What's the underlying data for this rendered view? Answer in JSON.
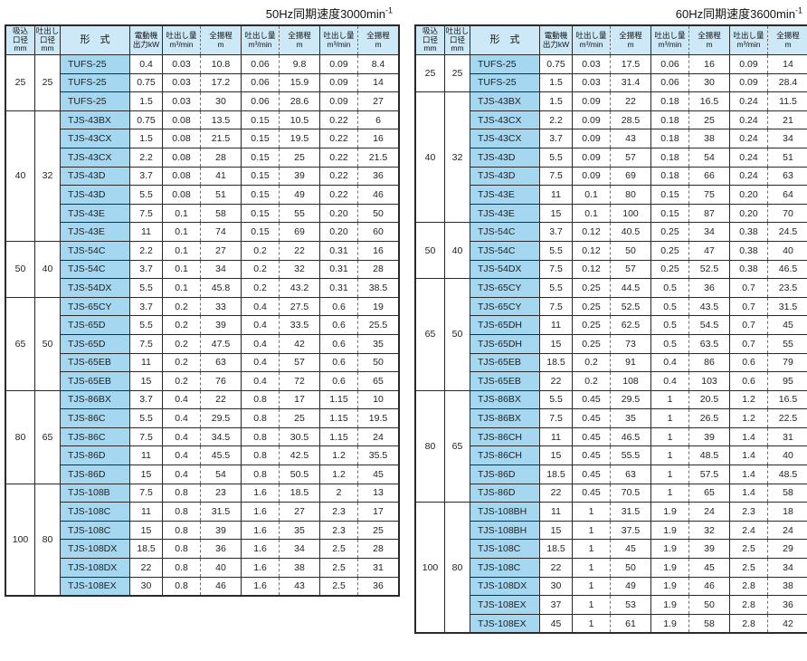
{
  "columns": [
    {
      "name": "suction-diameter",
      "label": "吸込\n口径\nmm",
      "dashed": false
    },
    {
      "name": "discharge-diameter",
      "label": "吐出し\n口径\nmm",
      "dashed": false
    },
    {
      "name": "model",
      "label": "形　式",
      "dashed": false
    },
    {
      "name": "motor-output",
      "label": "電動機\n出力kW",
      "dashed": false
    },
    {
      "name": "flow-1",
      "label": "吐出し量\nm³/min",
      "dashed": true
    },
    {
      "name": "head-1",
      "label": "全揚程\nm",
      "dashed": false
    },
    {
      "name": "flow-2",
      "label": "吐出し量\nm³/min",
      "dashed": true
    },
    {
      "name": "head-2",
      "label": "全揚程\nm",
      "dashed": false
    },
    {
      "name": "flow-3",
      "label": "吐出し量\nm³/min",
      "dashed": true
    },
    {
      "name": "head-3",
      "label": "全揚程\nm",
      "dashed": false
    }
  ],
  "colors": {
    "header_bg": "#cde8f6",
    "model_bg": "#a6d7f0",
    "border": "#2a2a2a",
    "dashed_divider": "#6e6e6e"
  },
  "tables": [
    {
      "title": "50Hz同期速度3000min",
      "title_sup": "-1",
      "groups": [
        {
          "suction": "25",
          "discharge": "25",
          "rows": [
            [
              "TUFS-25",
              "0.4",
              "0.03",
              "10.8",
              "0.06",
              "9.8",
              "0.09",
              "8.4"
            ],
            [
              "TUFS-25",
              "0.75",
              "0.03",
              "17.2",
              "0.06",
              "15.9",
              "0.09",
              "14"
            ],
            [
              "TUFS-25",
              "1.5",
              "0.03",
              "30",
              "0.06",
              "28.6",
              "0.09",
              "27"
            ]
          ]
        },
        {
          "suction": "40",
          "discharge": "32",
          "rows": [
            [
              "TJS-43BX",
              "0.75",
              "0.08",
              "13.5",
              "0.15",
              "10.5",
              "0.22",
              "6"
            ],
            [
              "TJS-43CX",
              "1.5",
              "0.08",
              "21.5",
              "0.15",
              "19.5",
              "0.22",
              "16"
            ],
            [
              "TJS-43CX",
              "2.2",
              "0.08",
              "28",
              "0.15",
              "25",
              "0.22",
              "21.5"
            ],
            [
              "TJS-43D",
              "3.7",
              "0.08",
              "41",
              "0.15",
              "39",
              "0.22",
              "36"
            ],
            [
              "TJS-43D",
              "5.5",
              "0.08",
              "51",
              "0.15",
              "49",
              "0.22",
              "46"
            ],
            [
              "TJS-43E",
              "7.5",
              "0.1",
              "58",
              "0.15",
              "55",
              "0.20",
              "50"
            ],
            [
              "TJS-43E",
              "11",
              "0.1",
              "74",
              "0.15",
              "69",
              "0.20",
              "60"
            ]
          ]
        },
        {
          "suction": "50",
          "discharge": "40",
          "rows": [
            [
              "TJS-54C",
              "2.2",
              "0.1",
              "27",
              "0.2",
              "22",
              "0.31",
              "16"
            ],
            [
              "TJS-54C",
              "3.7",
              "0.1",
              "34",
              "0.2",
              "32",
              "0.31",
              "28"
            ],
            [
              "TJS-54DX",
              "5.5",
              "0.1",
              "45.8",
              "0.2",
              "43.2",
              "0.31",
              "38.5"
            ]
          ]
        },
        {
          "suction": "65",
          "discharge": "50",
          "rows": [
            [
              "TJS-65CY",
              "3.7",
              "0.2",
              "33",
              "0.4",
              "27.5",
              "0.6",
              "19"
            ],
            [
              "TJS-65D",
              "5.5",
              "0.2",
              "39",
              "0.4",
              "33.5",
              "0.6",
              "25.5"
            ],
            [
              "TJS-65D",
              "7.5",
              "0.2",
              "47.5",
              "0.4",
              "42",
              "0.6",
              "35"
            ],
            [
              "TJS-65EB",
              "11",
              "0.2",
              "63",
              "0.4",
              "57",
              "0.6",
              "50"
            ],
            [
              "TJS-65EB",
              "15",
              "0.2",
              "76",
              "0.4",
              "72",
              "0.6",
              "65"
            ]
          ]
        },
        {
          "suction": "80",
          "discharge": "65",
          "rows": [
            [
              "TJS-86BX",
              "3.7",
              "0.4",
              "22",
              "0.8",
              "17",
              "1.15",
              "10"
            ],
            [
              "TJS-86C",
              "5.5",
              "0.4",
              "29.5",
              "0.8",
              "25",
              "1.15",
              "19.5"
            ],
            [
              "TJS-86C",
              "7.5",
              "0.4",
              "34.5",
              "0.8",
              "30.5",
              "1.15",
              "24"
            ],
            [
              "TJS-86D",
              "11",
              "0.4",
              "45.5",
              "0.8",
              "42.5",
              "1.2",
              "35.5"
            ],
            [
              "TJS-86D",
              "15",
              "0.4",
              "54",
              "0.8",
              "50.5",
              "1.2",
              "45"
            ]
          ]
        },
        {
          "suction": "100",
          "discharge": "80",
          "rows": [
            [
              "TJS-108B",
              "7.5",
              "0.8",
              "23",
              "1.6",
              "18.5",
              "2",
              "13"
            ],
            [
              "TJS-108C",
              "11",
              "0.8",
              "31.5",
              "1.6",
              "27",
              "2.3",
              "17"
            ],
            [
              "TJS-108C",
              "15",
              "0.8",
              "39",
              "1.6",
              "35",
              "2.3",
              "25"
            ],
            [
              "TJS-108DX",
              "18.5",
              "0.8",
              "36",
              "1.6",
              "34",
              "2.5",
              "28"
            ],
            [
              "TJS-108DX",
              "22",
              "0.8",
              "40",
              "1.6",
              "38",
              "2.5",
              "31"
            ],
            [
              "TJS-108EX",
              "30",
              "0.8",
              "46",
              "1.6",
              "43",
              "2.5",
              "36"
            ]
          ]
        }
      ]
    },
    {
      "title": "60Hz同期速度3600min",
      "title_sup": "-1",
      "groups": [
        {
          "suction": "25",
          "discharge": "25",
          "rows": [
            [
              "TUFS-25",
              "0.75",
              "0.03",
              "17.5",
              "0.06",
              "16",
              "0.09",
              "14"
            ],
            [
              "TUFS-25",
              "1.5",
              "0.03",
              "31.4",
              "0.06",
              "30",
              "0.09",
              "28.4"
            ]
          ]
        },
        {
          "suction": "40",
          "discharge": "32",
          "rows": [
            [
              "TJS-43BX",
              "1.5",
              "0.09",
              "22",
              "0.18",
              "16.5",
              "0.24",
              "11.5"
            ],
            [
              "TJS-43CX",
              "2.2",
              "0.09",
              "28.5",
              "0.18",
              "25",
              "0.24",
              "21"
            ],
            [
              "TJS-43CX",
              "3.7",
              "0.09",
              "43",
              "0.18",
              "38",
              "0.24",
              "34"
            ],
            [
              "TJS-43D",
              "5.5",
              "0.09",
              "57",
              "0.18",
              "54",
              "0.24",
              "51"
            ],
            [
              "TJS-43D",
              "7.5",
              "0.09",
              "69",
              "0.18",
              "66",
              "0.24",
              "63"
            ],
            [
              "TJS-43E",
              "11",
              "0.1",
              "80",
              "0.15",
              "75",
              "0.20",
              "64"
            ],
            [
              "TJS-43E",
              "15",
              "0.1",
              "100",
              "0.15",
              "87",
              "0.20",
              "70"
            ]
          ]
        },
        {
          "suction": "50",
          "discharge": "40",
          "rows": [
            [
              "TJS-54C",
              "3.7",
              "0.12",
              "40.5",
              "0.25",
              "34",
              "0.38",
              "24.5"
            ],
            [
              "TJS-54C",
              "5.5",
              "0.12",
              "50",
              "0.25",
              "47",
              "0.38",
              "40"
            ],
            [
              "TJS-54DX",
              "7.5",
              "0.12",
              "57",
              "0.25",
              "52.5",
              "0.38",
              "46.5"
            ]
          ]
        },
        {
          "suction": "65",
          "discharge": "50",
          "rows": [
            [
              "TJS-65CY",
              "5.5",
              "0.25",
              "44.5",
              "0.5",
              "36",
              "0.7",
              "23.5"
            ],
            [
              "TJS-65CY",
              "7.5",
              "0.25",
              "52.5",
              "0.5",
              "43.5",
              "0.7",
              "31.5"
            ],
            [
              "TJS-65DH",
              "11",
              "0.25",
              "62.5",
              "0.5",
              "54.5",
              "0.7",
              "45"
            ],
            [
              "TJS-65DH",
              "15",
              "0.25",
              "73",
              "0.5",
              "63.5",
              "0.7",
              "55"
            ],
            [
              "TJS-65EB",
              "18.5",
              "0.2",
              "91",
              "0.4",
              "86",
              "0.6",
              "79"
            ],
            [
              "TJS-65EB",
              "22",
              "0.2",
              "108",
              "0.4",
              "103",
              "0.6",
              "95"
            ]
          ]
        },
        {
          "suction": "80",
          "discharge": "65",
          "rows": [
            [
              "TJS-86BX",
              "5.5",
              "0.45",
              "29.5",
              "1",
              "20.5",
              "1.2",
              "16.5"
            ],
            [
              "TJS-86BX",
              "7.5",
              "0.45",
              "35",
              "1",
              "26.5",
              "1.2",
              "22.5"
            ],
            [
              "TJS-86CH",
              "11",
              "0.45",
              "46.5",
              "1",
              "39",
              "1.4",
              "31"
            ],
            [
              "TJS-86CH",
              "15",
              "0.45",
              "55.5",
              "1",
              "48.5",
              "1.4",
              "40"
            ],
            [
              "TJS-86D",
              "18.5",
              "0.45",
              "63",
              "1",
              "57.5",
              "1.4",
              "48.5"
            ],
            [
              "TJS-86D",
              "22",
              "0.45",
              "70.5",
              "1",
              "65",
              "1.4",
              "58"
            ]
          ]
        },
        {
          "suction": "100",
          "discharge": "80",
          "rows": [
            [
              "TJS-108BH",
              "11",
              "1",
              "31.5",
              "1.9",
              "24",
              "2.3",
              "18"
            ],
            [
              "TJS-108BH",
              "15",
              "1",
              "37.5",
              "1.9",
              "32",
              "2.4",
              "24"
            ],
            [
              "TJS-108C",
              "18.5",
              "1",
              "45",
              "1.9",
              "39",
              "2.5",
              "29"
            ],
            [
              "TJS-108C",
              "22",
              "1",
              "50",
              "1.9",
              "45",
              "2.5",
              "34"
            ],
            [
              "TJS-108DX",
              "30",
              "1",
              "49",
              "1.9",
              "46",
              "2.8",
              "38"
            ],
            [
              "TJS-108EX",
              "37",
              "1",
              "53",
              "1.9",
              "50",
              "2.8",
              "36"
            ],
            [
              "TJS-108EX",
              "45",
              "1",
              "61",
              "1.9",
              "58",
              "2.8",
              "42"
            ]
          ]
        }
      ]
    }
  ]
}
